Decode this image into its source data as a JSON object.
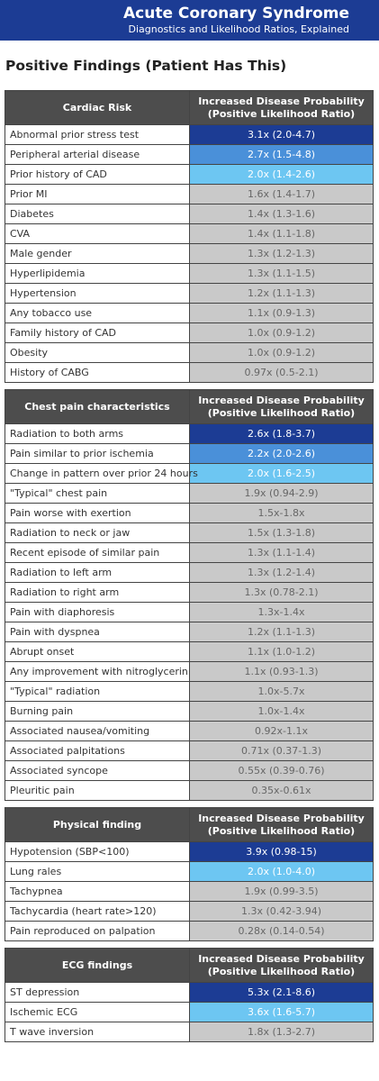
{
  "header": {
    "title": "Acute Coronary Syndrome",
    "subtitle": "Diagnostics and Likelihood Ratios, Explained"
  },
  "heading": "Positive Findings (Patient Has This)",
  "tables": [
    {
      "category": "Cardiac Risk",
      "column": "Increased Disease Probability (Positive Likelihood Ratio)",
      "rows": [
        {
          "finding": "Abnormal prior stress test",
          "lr": "3.1x (2.0-4.7)",
          "color": "#1c3c94"
        },
        {
          "finding": "Peripheral arterial disease",
          "lr": "2.7x (1.5-4.8)",
          "color": "#4a90d9"
        },
        {
          "finding": "Prior history of CAD",
          "lr": "2.0x (1.4-2.6)",
          "color": "#6dc6f2"
        },
        {
          "finding": "Prior MI",
          "lr": "1.6x (1.4-1.7)"
        },
        {
          "finding": "Diabetes",
          "lr": "1.4x (1.3-1.6)"
        },
        {
          "finding": "CVA",
          "lr": "1.4x (1.1-1.8)"
        },
        {
          "finding": "Male gender",
          "lr": "1.3x (1.2-1.3)"
        },
        {
          "finding": "Hyperlipidemia",
          "lr": "1.3x (1.1-1.5)"
        },
        {
          "finding": "Hypertension",
          "lr": "1.2x (1.1-1.3)"
        },
        {
          "finding": "Any tobacco use",
          "lr": "1.1x (0.9-1.3)"
        },
        {
          "finding": "Family history of CAD",
          "lr": "1.0x (0.9-1.2)"
        },
        {
          "finding": "Obesity",
          "lr": "1.0x (0.9-1.2)"
        },
        {
          "finding": "History of CABG",
          "lr": "0.97x (0.5-2.1)"
        }
      ]
    },
    {
      "category": "Chest pain characteristics",
      "column": "Increased Disease Probability (Positive Likelihood Ratio)",
      "rows": [
        {
          "finding": "Radiation to both arms",
          "lr": "2.6x (1.8-3.7)",
          "color": "#1c3c94"
        },
        {
          "finding": "Pain similar to prior ischemia",
          "lr": "2.2x (2.0-2.6)",
          "color": "#4a90d9"
        },
        {
          "finding": "Change in pattern over prior 24 hours",
          "lr": "2.0x (1.6-2.5)",
          "color": "#6dc6f2"
        },
        {
          "finding": "\"Typical\" chest pain",
          "lr": "1.9x (0.94-2.9)"
        },
        {
          "finding": "Pain worse with exertion",
          "lr": "1.5x-1.8x"
        },
        {
          "finding": "Radiation to neck or jaw",
          "lr": "1.5x (1.3-1.8)"
        },
        {
          "finding": "Recent episode of similar pain",
          "lr": "1.3x (1.1-1.4)"
        },
        {
          "finding": "Radiation to left arm",
          "lr": "1.3x (1.2-1.4)"
        },
        {
          "finding": "Radiation to right arm",
          "lr": "1.3x (0.78-2.1)"
        },
        {
          "finding": "Pain with diaphoresis",
          "lr": "1.3x-1.4x"
        },
        {
          "finding": "Pain with dyspnea",
          "lr": "1.2x (1.1-1.3)"
        },
        {
          "finding": "Abrupt onset",
          "lr": "1.1x (1.0-1.2)"
        },
        {
          "finding": "Any improvement with nitroglycerin",
          "lr": "1.1x (0.93-1.3)"
        },
        {
          "finding": "\"Typical\" radiation",
          "lr": "1.0x-5.7x"
        },
        {
          "finding": "Burning pain",
          "lr": "1.0x-1.4x"
        },
        {
          "finding": "Associated nausea/vomiting",
          "lr": "0.92x-1.1x"
        },
        {
          "finding": "Associated palpitations",
          "lr": "0.71x (0.37-1.3)"
        },
        {
          "finding": "Associated syncope",
          "lr": "0.55x (0.39-0.76)"
        },
        {
          "finding": "Pleuritic pain",
          "lr": "0.35x-0.61x"
        }
      ]
    },
    {
      "category": "Physical finding",
      "column": "Increased Disease Probability (Positive Likelihood Ratio)",
      "rows": [
        {
          "finding": "Hypotension (SBP<100)",
          "lr": "3.9x (0.98-15)",
          "color": "#1c3c94"
        },
        {
          "finding": "Lung rales",
          "lr": "2.0x (1.0-4.0)",
          "color": "#6dc6f2"
        },
        {
          "finding": "Tachypnea",
          "lr": "1.9x (0.99-3.5)"
        },
        {
          "finding": "Tachycardia (heart rate>120)",
          "lr": "1.3x (0.42-3.94)"
        },
        {
          "finding": "Pain reproduced on palpation",
          "lr": "0.28x (0.14-0.54)"
        }
      ]
    },
    {
      "category": "ECG findings",
      "column": "Increased Disease Probability (Positive Likelihood Ratio)",
      "rows": [
        {
          "finding": "ST depression",
          "lr": "5.3x (2.1-8.6)",
          "color": "#1c3c94"
        },
        {
          "finding": "Ischemic ECG",
          "lr": "3.6x (1.6-5.7)",
          "color": "#6dc6f2"
        },
        {
          "finding": "T wave inversion",
          "lr": "1.8x (1.3-2.7)"
        }
      ]
    }
  ]
}
